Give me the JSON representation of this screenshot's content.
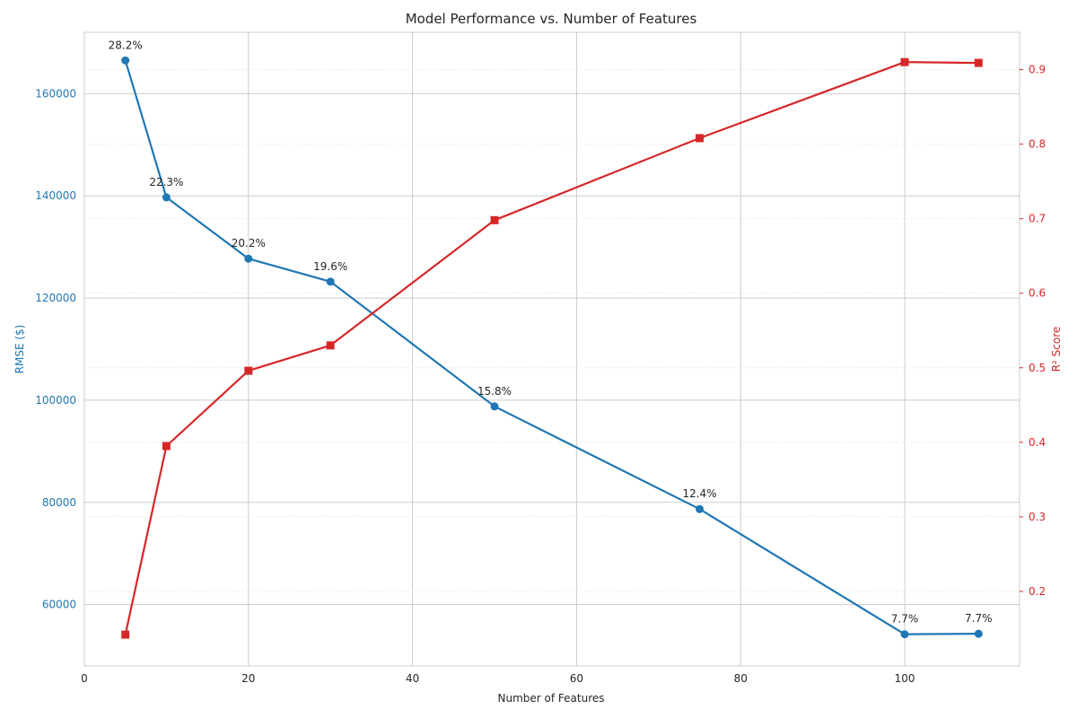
{
  "chart_data": {
    "type": "line",
    "title": "Model Performance vs. Number of Features",
    "xlabel": "Number of Features",
    "ylabel_left": "RMSE ($)",
    "ylabel_right": "R² Score",
    "xlim": [
      0,
      114
    ],
    "ylim_left": [
      48000,
      172000
    ],
    "ylim_right": [
      0.1,
      0.95
    ],
    "x_ticks": [
      0,
      20,
      40,
      60,
      80,
      100
    ],
    "y_left_ticks": [
      60000,
      80000,
      100000,
      120000,
      140000,
      160000
    ],
    "y_right_ticks": [
      0.2,
      0.3,
      0.4,
      0.5,
      0.6,
      0.7,
      0.8,
      0.9
    ],
    "grid": true,
    "x": [
      5,
      10,
      20,
      30,
      50,
      75,
      100,
      109
    ],
    "series": [
      {
        "name": "RMSE ($)",
        "axis": "left",
        "color": "#1f77b4",
        "marker": "circle",
        "values": [
          166500,
          139700,
          127700,
          123200,
          98800,
          78700,
          54200,
          54300
        ],
        "labels": [
          "28.2%",
          "22.3%",
          "20.2%",
          "19.6%",
          "15.8%",
          "12.4%",
          "7.7%",
          "7.7%"
        ]
      },
      {
        "name": "R² Score",
        "axis": "right",
        "color": "#d62728",
        "marker": "square",
        "values": [
          0.142,
          0.395,
          0.496,
          0.53,
          0.698,
          0.808,
          0.91,
          0.909
        ]
      }
    ]
  }
}
